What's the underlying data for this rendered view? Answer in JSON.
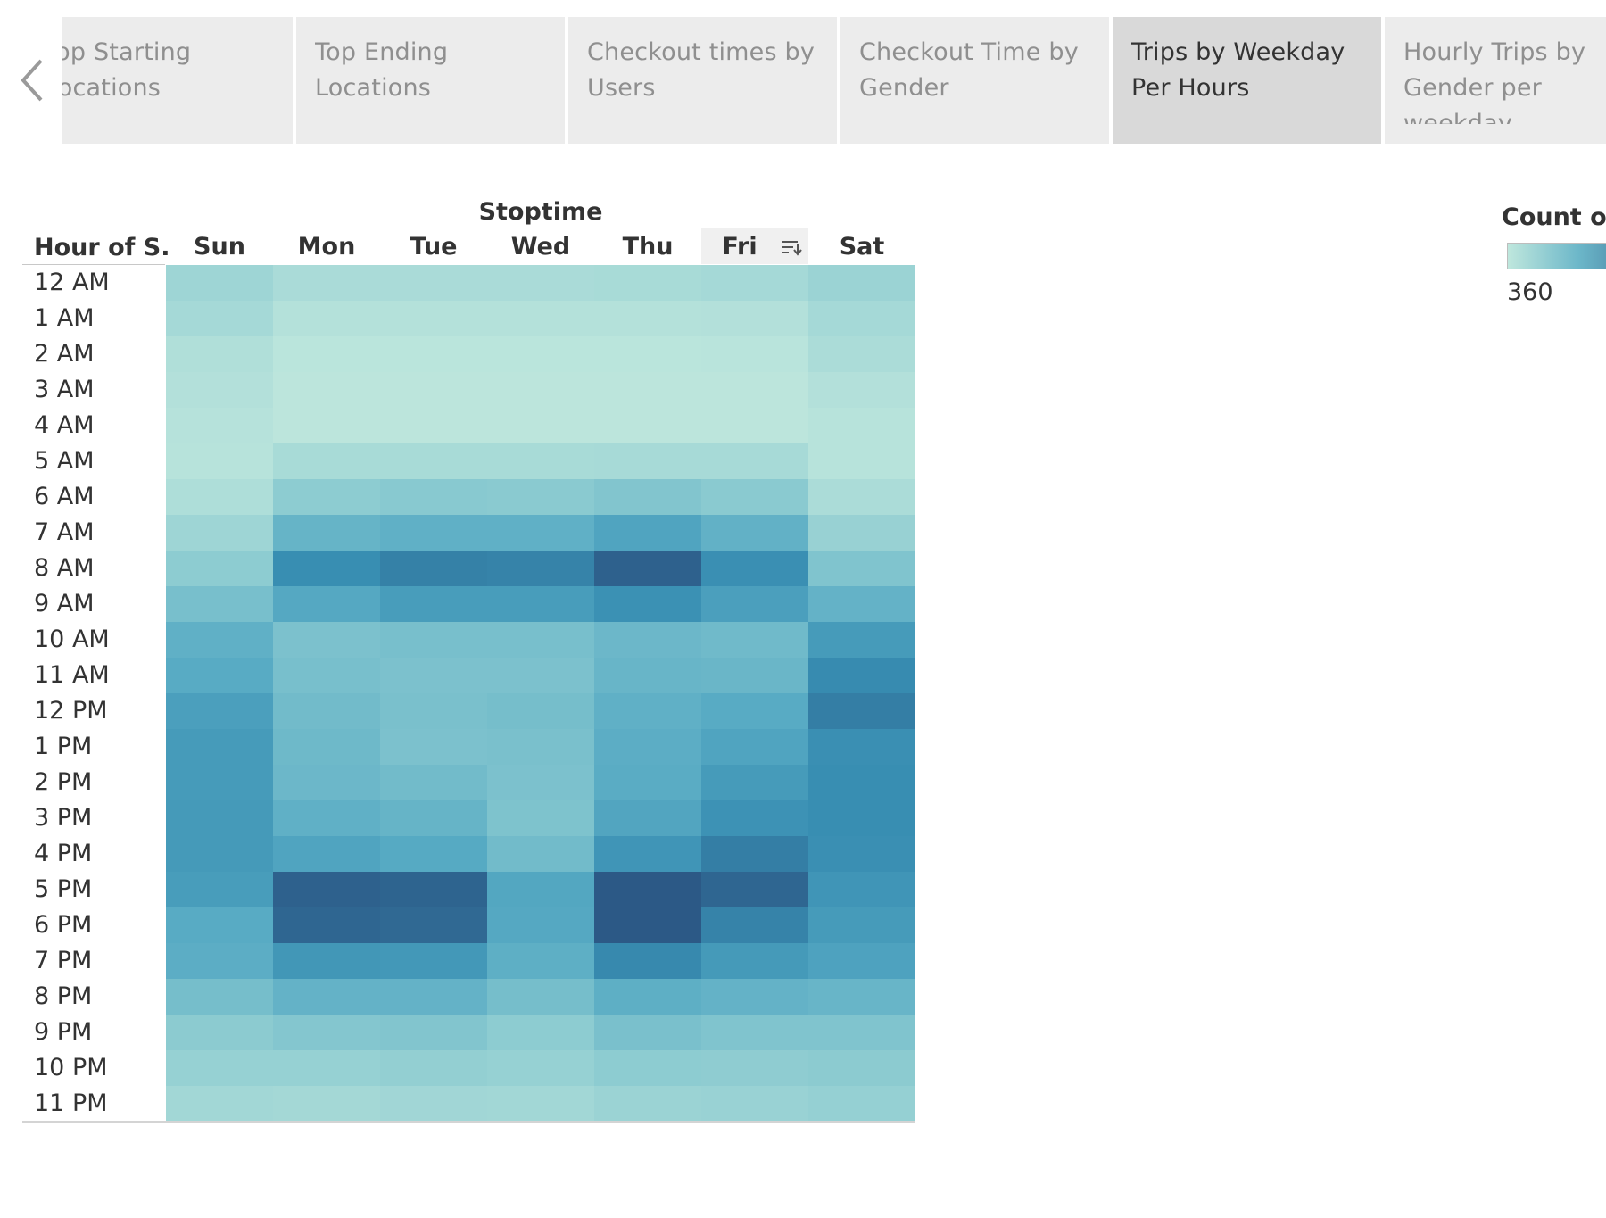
{
  "tabs": [
    {
      "label": "Top Starting Locations",
      "active": false
    },
    {
      "label": "Top Ending Locations",
      "active": false
    },
    {
      "label": "Checkout times by Users",
      "active": false
    },
    {
      "label": "Checkout Time by Gender",
      "active": false
    },
    {
      "label": "Trips by Weekday Per Hours",
      "active": true
    },
    {
      "label": "Hourly Trips by Gender per weekday",
      "active": false
    }
  ],
  "nav": {
    "prev_icon": "chevron-left-icon"
  },
  "legend": {
    "title": "Count of",
    "min_label": "360",
    "color_low": "#bfe7dd",
    "color_high": "#2c5986"
  },
  "sort_indicator": {
    "day": "Fri",
    "icon": "sort-descending-icon"
  },
  "chart_data": {
    "type": "heatmap",
    "column_header": "Stoptime",
    "row_header": "Hour of S..",
    "columns": [
      "Sun",
      "Mon",
      "Tue",
      "Wed",
      "Thu",
      "Fri",
      "Sat"
    ],
    "rows": [
      "12 AM",
      "1 AM",
      "2 AM",
      "3 AM",
      "4 AM",
      "5 AM",
      "6 AM",
      "7 AM",
      "8 AM",
      "9 AM",
      "10 AM",
      "11 AM",
      "12 PM",
      "1 PM",
      "2 PM",
      "3 PM",
      "4 PM",
      "5 PM",
      "6 PM",
      "7 PM",
      "8 PM",
      "9 PM",
      "10 PM",
      "11 PM"
    ],
    "values": [
      [
        0.22,
        0.14,
        0.14,
        0.14,
        0.15,
        0.17,
        0.24
      ],
      [
        0.17,
        0.07,
        0.07,
        0.07,
        0.07,
        0.08,
        0.17
      ],
      [
        0.1,
        0.03,
        0.03,
        0.03,
        0.03,
        0.04,
        0.13
      ],
      [
        0.08,
        0.02,
        0.02,
        0.02,
        0.02,
        0.02,
        0.08
      ],
      [
        0.06,
        0.02,
        0.02,
        0.02,
        0.02,
        0.02,
        0.05
      ],
      [
        0.05,
        0.15,
        0.15,
        0.15,
        0.16,
        0.16,
        0.05
      ],
      [
        0.11,
        0.33,
        0.36,
        0.35,
        0.39,
        0.35,
        0.13
      ],
      [
        0.22,
        0.53,
        0.56,
        0.56,
        0.65,
        0.55,
        0.26
      ],
      [
        0.33,
        0.8,
        0.85,
        0.84,
        0.97,
        0.79,
        0.4
      ],
      [
        0.44,
        0.62,
        0.7,
        0.7,
        0.78,
        0.68,
        0.54
      ],
      [
        0.56,
        0.42,
        0.44,
        0.44,
        0.5,
        0.48,
        0.71
      ],
      [
        0.6,
        0.44,
        0.42,
        0.42,
        0.52,
        0.51,
        0.81
      ],
      [
        0.68,
        0.47,
        0.43,
        0.45,
        0.56,
        0.6,
        0.86
      ],
      [
        0.71,
        0.49,
        0.42,
        0.43,
        0.58,
        0.65,
        0.79
      ],
      [
        0.71,
        0.5,
        0.47,
        0.42,
        0.59,
        0.71,
        0.8
      ],
      [
        0.72,
        0.56,
        0.53,
        0.41,
        0.64,
        0.77,
        0.8
      ],
      [
        0.72,
        0.65,
        0.61,
        0.47,
        0.75,
        0.86,
        0.79
      ],
      [
        0.7,
        0.97,
        0.96,
        0.63,
        1.0,
        0.95,
        0.75
      ],
      [
        0.6,
        0.95,
        0.94,
        0.62,
        1.0,
        0.84,
        0.71
      ],
      [
        0.58,
        0.74,
        0.73,
        0.57,
        0.82,
        0.72,
        0.66
      ],
      [
        0.45,
        0.54,
        0.54,
        0.45,
        0.57,
        0.54,
        0.52
      ],
      [
        0.34,
        0.38,
        0.39,
        0.33,
        0.43,
        0.4,
        0.4
      ],
      [
        0.27,
        0.27,
        0.29,
        0.27,
        0.33,
        0.32,
        0.34
      ],
      [
        0.19,
        0.18,
        0.2,
        0.19,
        0.24,
        0.25,
        0.28
      ]
    ]
  }
}
